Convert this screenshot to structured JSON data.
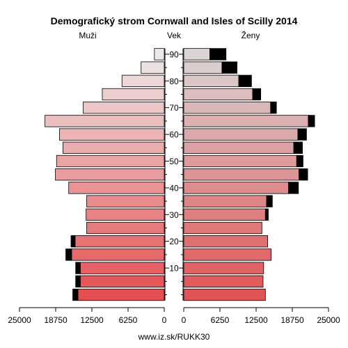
{
  "chart_data": {
    "type": "bar",
    "subtype": "population-pyramid",
    "title": "Demografický strom Cornwall and Isles of Scilly 2014",
    "left_label": "Muži",
    "center_label": "Vek",
    "right_label": "Ženy",
    "footer": "www.iz.sk/RUKK30",
    "age_tick_labels": [
      "10",
      "20",
      "30",
      "40",
      "50",
      "60",
      "70",
      "80",
      "90"
    ],
    "x_tick_labels_left": [
      "25000",
      "18750",
      "12500",
      "6250",
      "0"
    ],
    "x_tick_labels_right": [
      "0",
      "6250",
      "12500",
      "18750",
      "25000"
    ],
    "xlim": [
      0,
      25000
    ],
    "groups": [
      "0-4",
      "5-9",
      "10-14",
      "15-19",
      "20-24",
      "25-29",
      "30-34",
      "35-39",
      "40-44",
      "45-49",
      "50-54",
      "55-59",
      "60-64",
      "65-69",
      "70-74",
      "75-79",
      "80-84",
      "85-89",
      "90+"
    ],
    "series": [
      {
        "name": "Muži",
        "values": [
          14900,
          14500,
          14500,
          16000,
          15400,
          13400,
          13500,
          13400,
          16500,
          18800,
          18600,
          17500,
          18100,
          20600,
          14000,
          10700,
          7300,
          4000,
          1700
        ],
        "excess": [
          900,
          800,
          800,
          1000,
          700,
          0,
          0,
          0,
          0,
          0,
          0,
          0,
          0,
          0,
          0,
          0,
          0,
          0,
          0
        ]
      },
      {
        "name": "Ženy",
        "values": [
          14100,
          13700,
          13800,
          15100,
          14500,
          13500,
          14100,
          14300,
          18100,
          19900,
          19500,
          19000,
          19700,
          21500,
          15000,
          11900,
          9500,
          6600,
          4500
        ],
        "excess": [
          0,
          0,
          0,
          0,
          0,
          0,
          500,
          1000,
          1700,
          1500,
          1100,
          1500,
          1500,
          1100,
          1000,
          1400,
          2200,
          2600,
          2800
        ]
      }
    ]
  }
}
